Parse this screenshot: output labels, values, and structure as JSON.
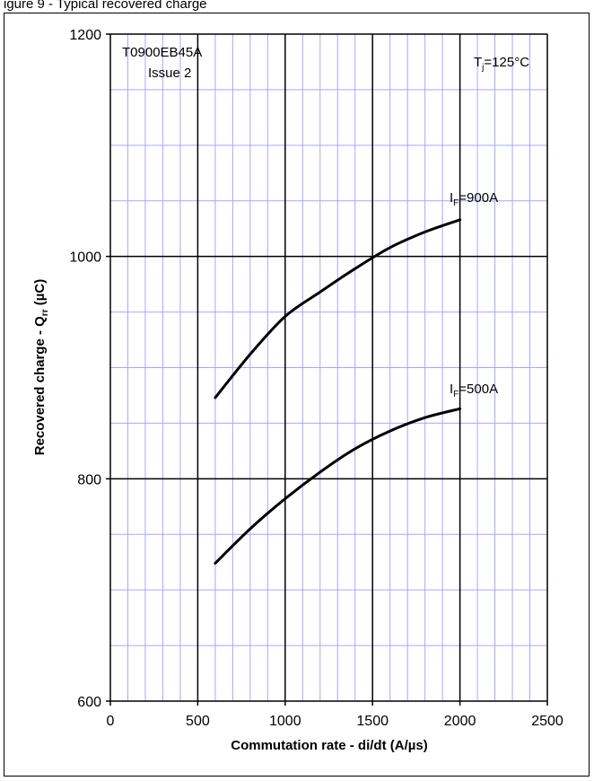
{
  "caption": "igure 9 - Typical recovered charge",
  "chart_data": {
    "type": "line",
    "title": "",
    "xlabel": "Commutation rate - di/dt (A/µs)",
    "ylabel_main": "Recovered charge - Q",
    "ylabel_sub": "rr",
    "ylabel_unit": " (µC)",
    "xlim": [
      0,
      2500
    ],
    "ylim": [
      600,
      1200
    ],
    "x_ticks": [
      0,
      500,
      1000,
      1500,
      2000,
      2500
    ],
    "y_ticks": [
      600,
      800,
      1000,
      1200
    ],
    "grid": true,
    "annotations": {
      "part_number": "T0900EB45A",
      "issue": "Issue 2",
      "temp_main": "T",
      "temp_sub": "j",
      "temp_value": "=125°C"
    },
    "series": [
      {
        "label_main": "I",
        "label_sub": "F",
        "label_value": "=900A",
        "x": [
          600,
          800,
          1000,
          1200,
          1400,
          1600,
          1800,
          2000
        ],
        "y": [
          873,
          912,
          946,
          968,
          989,
          1008,
          1022,
          1033
        ]
      },
      {
        "label_main": "I",
        "label_sub": "F",
        "label_value": "=500A",
        "x": [
          600,
          800,
          1000,
          1200,
          1400,
          1600,
          1800,
          2000
        ],
        "y": [
          724,
          755,
          782,
          806,
          827,
          843,
          855,
          863
        ]
      }
    ],
    "colors": {
      "grid_major": "#000000",
      "grid_minor": "#a6a6ff",
      "curve": "#000000"
    }
  }
}
